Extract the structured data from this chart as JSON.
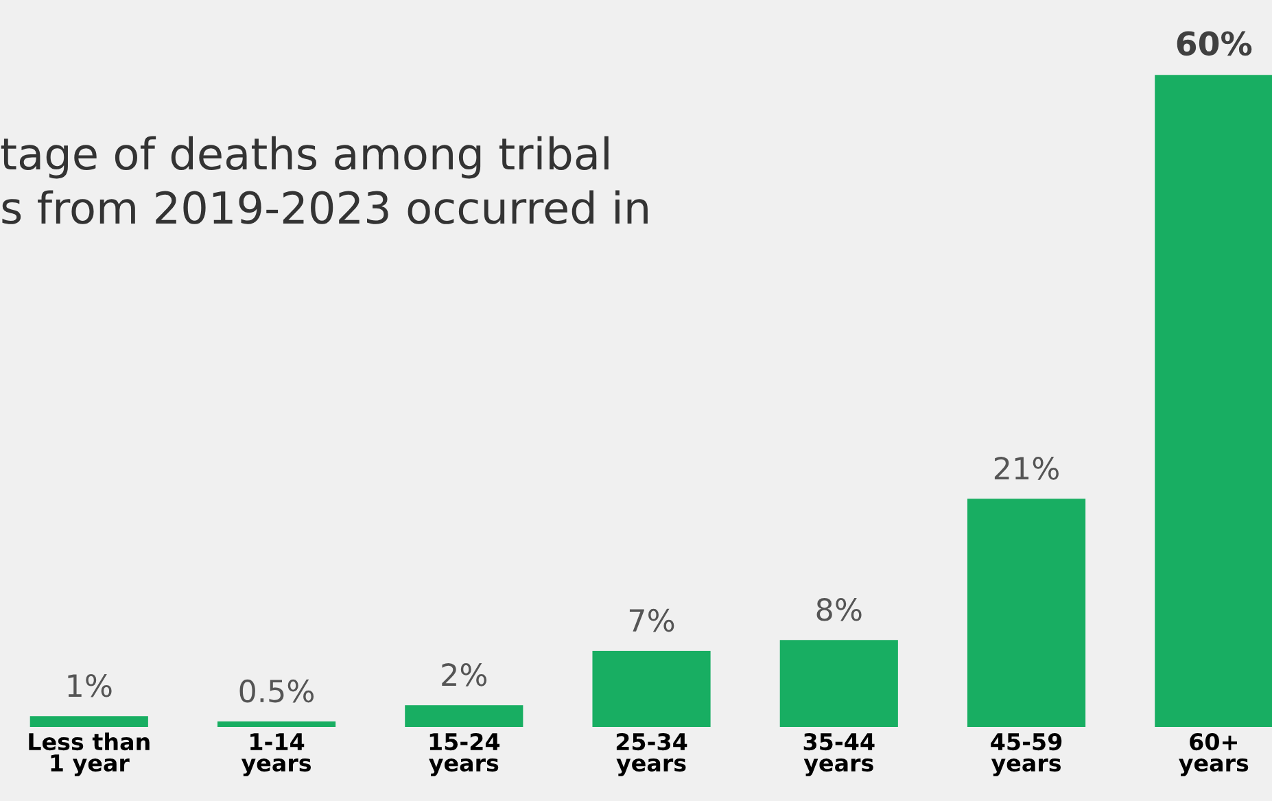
{
  "chart_data": {
    "type": "bar",
    "title": "tage of deaths among tribal\ns from 2019-2023 occurred in",
    "categories": [
      "Less than\n1 year",
      "1-14\nyears",
      "15-24\nyears",
      "25-34\nyears",
      "35-44\nyears",
      "45-59\nyears",
      "60+\nyears"
    ],
    "values": [
      1,
      0.5,
      2,
      7,
      8,
      21,
      60
    ],
    "value_labels": [
      "1%",
      "0.5%",
      "2%",
      "7%",
      "8%",
      "21%",
      "60%"
    ],
    "color": "#18ae62",
    "tick_labels": "x"
  }
}
